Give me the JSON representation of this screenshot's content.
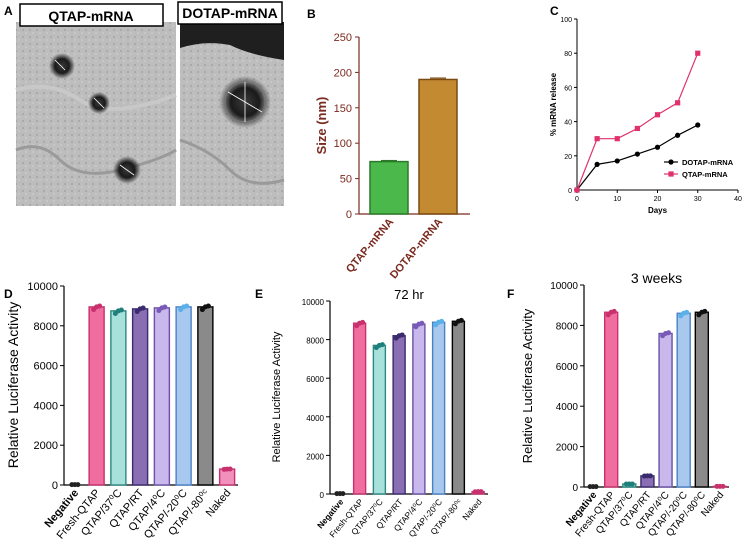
{
  "panel_letters": [
    "A",
    "B",
    "C",
    "D",
    "E",
    "F"
  ],
  "micrographs": {
    "left_label": "QTAP-mRNA",
    "right_label": "DOTAP-mRNA"
  },
  "colors": {
    "qtap_green": "#4ab84a",
    "dotap_gold": "#c48a32",
    "axis_brown": "#7a2a1f",
    "fresh": "#f06da0",
    "c37": "#a8e0dc",
    "rt": "#8a6eb3",
    "c4": "#c8b8ec",
    "cm20": "#a8c8ee",
    "cm80": "#8a8a8a",
    "naked": "#f290bc",
    "negative": "#222222",
    "qtap_line": "#e0306e",
    "dotap_line": "#000000"
  },
  "chart_data": [
    {
      "id": "B",
      "type": "bar",
      "title": "",
      "xlabel": "",
      "ylabel": "Size (nm)",
      "categories": [
        "QTAP-mRNA",
        "DOTAP-mRNA"
      ],
      "values": [
        74,
        190
      ],
      "errors": [
        1.5,
        2
      ],
      "ylim": [
        0,
        250
      ],
      "yticks": [
        0,
        50,
        100,
        150,
        200,
        250
      ],
      "grid": false
    },
    {
      "id": "C",
      "type": "line",
      "title": "",
      "xlabel": "Days",
      "ylabel": "% mRNA release",
      "xlim": [
        0,
        40
      ],
      "ylim": [
        0,
        100
      ],
      "xticks": [
        0,
        10,
        20,
        30,
        40
      ],
      "yticks": [
        0,
        20,
        40,
        60,
        80,
        100
      ],
      "legend": "right",
      "series": [
        {
          "name": "DOTAP-mRNA",
          "x": [
            0,
            5,
            10,
            15,
            20,
            25,
            30
          ],
          "y": [
            0,
            15,
            17,
            21,
            25,
            32,
            38
          ]
        },
        {
          "name": "QTAP-mRNA",
          "x": [
            0,
            5,
            10,
            15,
            20,
            25,
            30
          ],
          "y": [
            0,
            30,
            30,
            36,
            44,
            51,
            80
          ]
        }
      ]
    },
    {
      "id": "D",
      "type": "bar",
      "title": "",
      "ylabel": "Relative Luciferase Activity",
      "categories": [
        "Negative",
        "Fresh-QTAP",
        "QTAP/37⁰C",
        "QTAP/RT",
        "QTAP/4⁰C",
        "QTAP/-20⁰C",
        "QTAP/-80⁰ᶜ",
        "Naked"
      ],
      "values": [
        20,
        8950,
        8750,
        8850,
        8900,
        8950,
        8950,
        800
      ],
      "ylim": [
        0,
        10000
      ],
      "yticks": [
        0,
        2000,
        4000,
        6000,
        8000,
        10000
      ]
    },
    {
      "id": "E",
      "type": "bar",
      "title": "72 hr",
      "ylabel": "Relative Luciferase Activity",
      "categories": [
        "Negative",
        "Fresh-QTAP",
        "QTAP/37⁰C",
        "QTAP/RT",
        "QTAP/4⁰C",
        "QTAP/-20⁰C",
        "QTAP/-80⁰ᶜ",
        "Naked"
      ],
      "values": [
        20,
        8850,
        7700,
        8200,
        8800,
        8900,
        8950,
        120
      ],
      "ylim": [
        0,
        10000
      ],
      "yticks": [
        0,
        2000,
        4000,
        6000,
        8000,
        10000
      ]
    },
    {
      "id": "F",
      "type": "bar",
      "title": "3 weeks",
      "ylabel": "Relative Luciferase Activity",
      "categories": [
        "Negative",
        "Fresh-QTAP",
        "QTAP/37⁰C",
        "QTAP/RT",
        "QTAP/4⁰C",
        "QTAP/-20⁰C",
        "QTAP/-80⁰C",
        "Naked"
      ],
      "values": [
        20,
        8650,
        150,
        550,
        7600,
        8600,
        8650,
        30
      ],
      "ylim": [
        0,
        10000
      ],
      "yticks": [
        0,
        2000,
        4000,
        6000,
        8000,
        10000
      ]
    }
  ]
}
